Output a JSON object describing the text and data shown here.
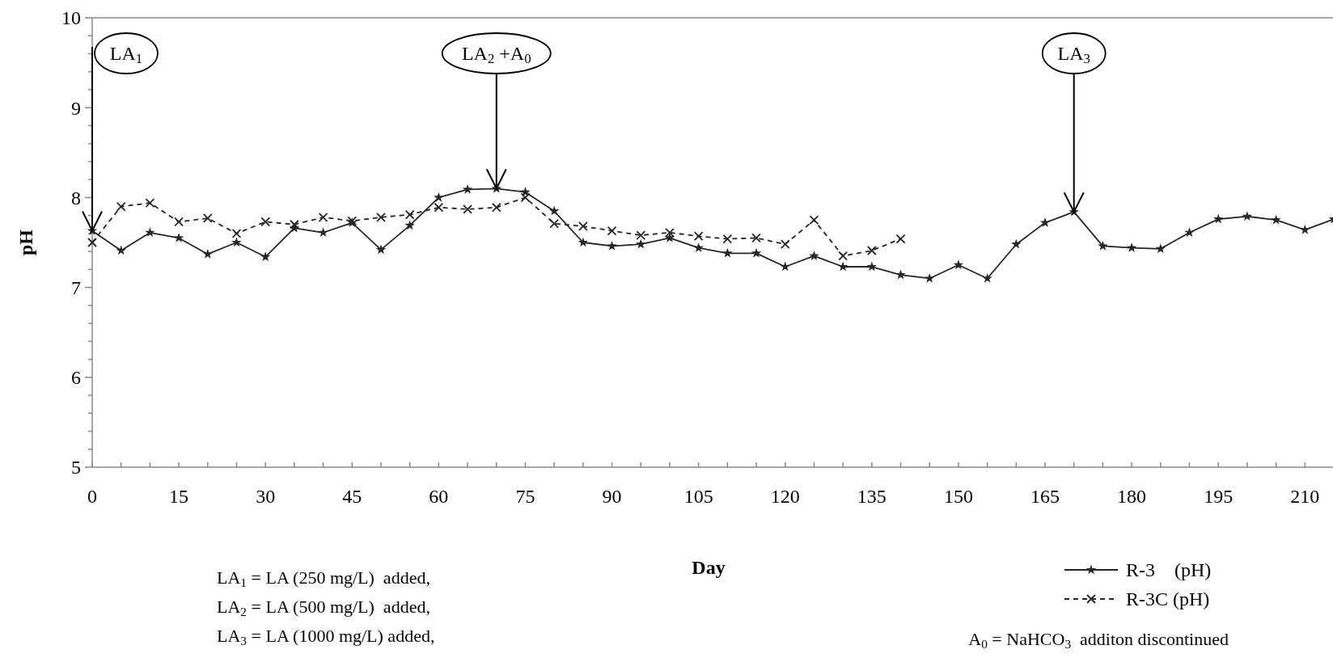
{
  "chart_data": {
    "type": "line",
    "xlabel": "Day",
    "ylabel": "pH",
    "xlim": [
      0,
      215
    ],
    "ylim": [
      5,
      10
    ],
    "xticks": [
      0,
      {
        "value": 5,
        "label": null
      },
      {
        "value": 10,
        "label": null
      },
      15,
      {
        "value": 20,
        "label": null
      },
      {
        "value": 25,
        "label": null
      },
      30,
      {
        "value": 35,
        "label": null
      },
      {
        "value": 40,
        "label": null
      },
      45,
      {
        "value": 50,
        "label": null
      },
      {
        "value": 55,
        "label": null
      },
      60,
      {
        "value": 65,
        "label": null
      },
      {
        "value": 70,
        "label": null
      },
      75,
      {
        "value": 80,
        "label": null
      },
      {
        "value": 85,
        "label": null
      },
      90,
      {
        "value": 95,
        "label": null
      },
      {
        "value": 100,
        "label": null
      },
      105,
      {
        "value": 110,
        "label": null
      },
      {
        "value": 115,
        "label": null
      },
      120,
      {
        "value": 125,
        "label": null
      },
      {
        "value": 130,
        "label": null
      },
      135,
      {
        "value": 140,
        "label": null
      },
      {
        "value": 145,
        "label": null
      },
      150,
      {
        "value": 155,
        "label": null
      },
      {
        "value": 160,
        "label": null
      },
      165,
      {
        "value": 170,
        "label": null
      },
      {
        "value": 175,
        "label": null
      },
      180,
      {
        "value": 185,
        "label": null
      },
      {
        "value": 190,
        "label": null
      },
      195,
      {
        "value": 200,
        "label": null
      },
      {
        "value": 205,
        "label": null
      },
      210
    ],
    "yticks": [
      5,
      {
        "value": 5.2,
        "label": null
      },
      {
        "value": 5.4,
        "label": null
      },
      {
        "value": 5.6,
        "label": null
      },
      {
        "value": 5.8,
        "label": null
      },
      6,
      {
        "value": 6.2,
        "label": null
      },
      {
        "value": 6.4,
        "label": null
      },
      {
        "value": 6.6,
        "label": null
      },
      {
        "value": 6.8,
        "label": null
      },
      7,
      {
        "value": 7.2,
        "label": null
      },
      {
        "value": 7.4,
        "label": null
      },
      {
        "value": 7.6,
        "label": null
      },
      {
        "value": 7.8,
        "label": null
      },
      8,
      {
        "value": 8.2,
        "label": null
      },
      {
        "value": 8.4,
        "label": null
      },
      {
        "value": 8.6,
        "label": null
      },
      {
        "value": 8.8,
        "label": null
      },
      9,
      {
        "value": 9.2,
        "label": null
      },
      {
        "value": 9.4,
        "label": null
      },
      {
        "value": 9.6,
        "label": null
      },
      {
        "value": 9.8,
        "label": null
      },
      10
    ],
    "grid": false,
    "legend": "bottom right",
    "series": [
      {
        "name": "R-3    (pH)",
        "color": "#262626",
        "marker": "star",
        "line_style": "solid",
        "x": [
          0,
          5,
          10,
          15,
          20,
          25,
          30,
          35,
          40,
          45,
          50,
          55,
          60,
          65,
          70,
          75,
          80,
          85,
          90,
          95,
          100,
          105,
          110,
          115,
          120,
          125,
          130,
          135,
          140,
          145,
          150,
          155,
          160,
          165,
          170,
          175,
          180,
          185,
          190,
          195,
          200,
          205,
          210,
          215
        ],
        "values": [
          7.63,
          7.41,
          7.61,
          7.55,
          7.37,
          7.5,
          7.34,
          7.66,
          7.61,
          7.72,
          7.42,
          7.69,
          8.0,
          8.09,
          8.1,
          8.06,
          7.85,
          7.5,
          7.46,
          7.48,
          7.55,
          7.44,
          7.38,
          7.38,
          7.23,
          7.35,
          7.23,
          7.23,
          7.14,
          7.1,
          7.25,
          7.1,
          7.48,
          7.72,
          7.84,
          7.46,
          7.44,
          7.43,
          7.61,
          7.76,
          7.79,
          7.75,
          7.64,
          7.76
        ]
      },
      {
        "name": "R-3C (pH)",
        "color": "#262626",
        "marker": "cross",
        "line_style": "dashed",
        "x": [
          0,
          5,
          10,
          15,
          20,
          25,
          30,
          35,
          40,
          45,
          50,
          55,
          60,
          65,
          70,
          75,
          80,
          85,
          90,
          95,
          100,
          105,
          110,
          115,
          120,
          125,
          130,
          135,
          140
        ],
        "values": [
          7.5,
          7.9,
          7.94,
          7.73,
          7.77,
          7.6,
          7.73,
          7.7,
          7.78,
          7.74,
          7.78,
          7.81,
          7.89,
          7.87,
          7.89,
          8.0,
          7.71,
          7.68,
          7.63,
          7.58,
          7.61,
          7.57,
          7.54,
          7.55,
          7.48,
          7.75,
          7.35,
          7.41,
          7.54
        ]
      }
    ],
    "annotations": [
      {
        "text": "LA$_{1}$",
        "x": 0,
        "y": 7.63
      },
      {
        "text": "LA$_{2}$ +A$_{0}$",
        "x": 70,
        "y": 8.1
      },
      {
        "text": "LA$_{3}$",
        "x": 170,
        "y": 7.84
      },
      "LA$_{1}$ = LA (250 mg/L)  added,",
      "LA$_{2}$ = LA (500 mg/L)  added,",
      "LA$_{3}$ = LA (1000 mg/L) added,",
      "A$_{0}$ = NaHCO$_{3}$  additon discontinued"
    ]
  }
}
